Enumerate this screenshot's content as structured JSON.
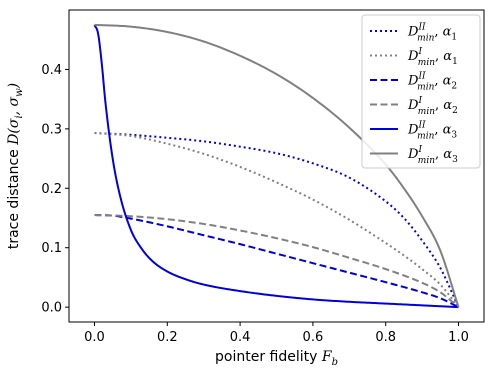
{
  "chart_data": {
    "type": "line",
    "xlabel": {
      "text": "pointer fidelity ",
      "math": "F",
      "sub": "b"
    },
    "ylabel": {
      "text": "trace distance ",
      "math": "D(σ",
      "sub1": "i",
      "mid": ", σ",
      "sub2": "w",
      "end": ")"
    },
    "xlim": [
      -0.07,
      1.07
    ],
    "ylim": [
      -0.025,
      0.5
    ],
    "xticks": [
      0.0,
      0.2,
      0.4,
      0.6,
      0.8,
      1.0
    ],
    "xtick_labels": [
      "0.0",
      "0.2",
      "0.4",
      "0.6",
      "0.8",
      "1.0"
    ],
    "yticks": [
      0.0,
      0.1,
      0.2,
      0.3,
      0.4
    ],
    "ytick_labels": [
      "0.0",
      "0.1",
      "0.2",
      "0.3",
      "0.4"
    ],
    "legend_position": "top-right",
    "series": [
      {
        "name": "D_min^II, α1",
        "sup": "II",
        "alpha": "1",
        "color": "#0000dd",
        "dash": "dotted",
        "x": [
          0.0,
          0.1,
          0.2,
          0.3,
          0.4,
          0.5,
          0.6,
          0.7,
          0.8,
          0.85,
          0.9,
          0.95,
          1.0
        ],
        "y": [
          0.293,
          0.29,
          0.285,
          0.279,
          0.27,
          0.259,
          0.242,
          0.218,
          0.178,
          0.15,
          0.112,
          0.066,
          0.0
        ]
      },
      {
        "name": "D_min^I, α1",
        "sup": "I",
        "alpha": "1",
        "color": "#808080",
        "dash": "dotted",
        "x": [
          0.0,
          0.1,
          0.2,
          0.3,
          0.4,
          0.5,
          0.6,
          0.7,
          0.8,
          0.85,
          0.9,
          0.95,
          1.0
        ],
        "y": [
          0.293,
          0.288,
          0.275,
          0.258,
          0.236,
          0.21,
          0.181,
          0.147,
          0.108,
          0.087,
          0.064,
          0.038,
          0.0
        ]
      },
      {
        "name": "D_min^II, α2",
        "sup": "II",
        "alpha": "2",
        "color": "#0000dd",
        "dash": "dashed",
        "x": [
          0.0,
          0.05,
          0.1,
          0.2,
          0.3,
          0.4,
          0.5,
          0.6,
          0.7,
          0.8,
          0.9,
          0.95,
          1.0
        ],
        "y": [
          0.155,
          0.154,
          0.149,
          0.136,
          0.121,
          0.106,
          0.09,
          0.074,
          0.058,
          0.042,
          0.025,
          0.015,
          0.0
        ]
      },
      {
        "name": "D_min^I, α2",
        "sup": "I",
        "alpha": "2",
        "color": "#808080",
        "dash": "dashed",
        "x": [
          0.0,
          0.1,
          0.2,
          0.3,
          0.4,
          0.5,
          0.6,
          0.7,
          0.8,
          0.9,
          0.95,
          1.0
        ],
        "y": [
          0.155,
          0.153,
          0.148,
          0.14,
          0.129,
          0.116,
          0.101,
          0.083,
          0.064,
          0.041,
          0.025,
          0.0
        ]
      },
      {
        "name": "D_min^II, α3",
        "sup": "II",
        "alpha": "3",
        "color": "#0000dd",
        "dash": "solid",
        "x": [
          0.0,
          0.01,
          0.02,
          0.03,
          0.05,
          0.07,
          0.1,
          0.13,
          0.16,
          0.2,
          0.25,
          0.3,
          0.4,
          0.5,
          0.6,
          0.7,
          0.8,
          0.9,
          0.95,
          1.0
        ],
        "y": [
          0.475,
          0.46,
          0.41,
          0.345,
          0.25,
          0.188,
          0.13,
          0.098,
          0.077,
          0.06,
          0.047,
          0.038,
          0.027,
          0.019,
          0.013,
          0.009,
          0.006,
          0.003,
          0.0015,
          0.0
        ]
      },
      {
        "name": "D_min^I, α3",
        "sup": "I",
        "alpha": "3",
        "color": "#808080",
        "dash": "solid",
        "x": [
          0.0,
          0.1,
          0.2,
          0.3,
          0.4,
          0.5,
          0.6,
          0.7,
          0.8,
          0.85,
          0.9,
          0.95,
          1.0
        ],
        "y": [
          0.475,
          0.472,
          0.463,
          0.447,
          0.423,
          0.392,
          0.352,
          0.302,
          0.24,
          0.2,
          0.153,
          0.095,
          0.0
        ]
      }
    ]
  }
}
